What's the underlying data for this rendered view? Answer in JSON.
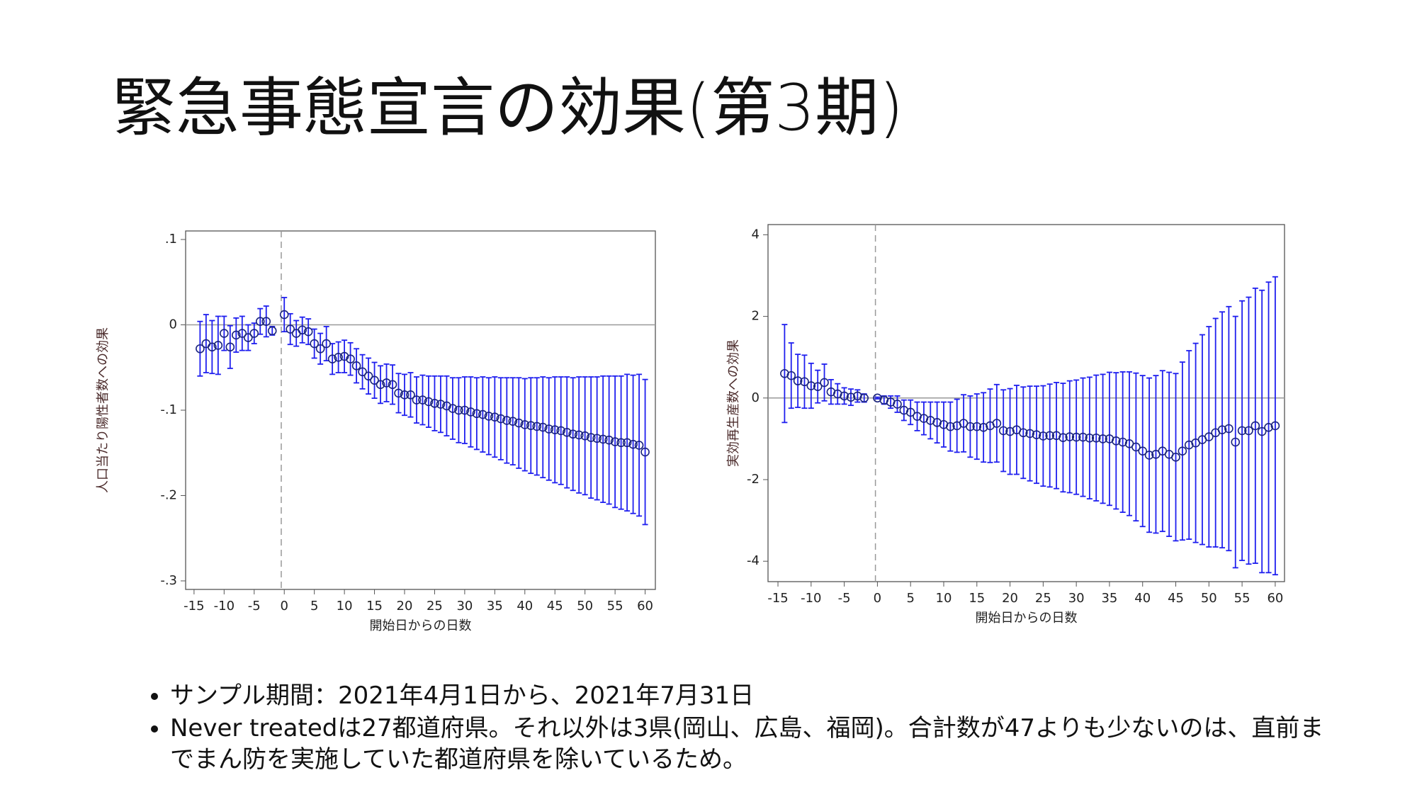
{
  "title": "緊急事態宣言の効果(第3期)",
  "bullets": [
    "サンプル期間：2021年4月1日から、2021年7月31日",
    "Never treatedは27都道府県。それ以外は3県(岡山、広島、福岡)。合計数が47よりも少ないのは、直前までまん防を実施していた都道府県を除いているため。"
  ],
  "chart_data": [
    {
      "type": "errorbar",
      "xlabel": "開始日からの日数",
      "ylabel": "人口当たり陽性者数への効果",
      "xlim": [
        -16.4,
        61.7
      ],
      "ylim": [
        -0.31,
        0.11
      ],
      "xticks": [
        -15,
        -10,
        -5,
        0,
        5,
        10,
        15,
        20,
        25,
        30,
        35,
        40,
        45,
        50,
        55,
        60
      ],
      "yticks": [
        {
          "value": 0.1,
          "label": ".1"
        },
        0,
        {
          "value": -0.1,
          "label": "-.1"
        },
        {
          "value": -0.2,
          "label": "-.2"
        },
        {
          "value": -0.3,
          "label": "-.3"
        }
      ],
      "hline": 0,
      "vline": -0.5,
      "color": "#1f1fef",
      "marker_color": "#1a237e",
      "x": [
        -14,
        -13,
        -12,
        -11,
        -10,
        -9,
        -8,
        -7,
        -6,
        -5,
        -4,
        -3,
        -2,
        0,
        1,
        2,
        3,
        4,
        5,
        6,
        7,
        8,
        9,
        10,
        11,
        12,
        13,
        14,
        15,
        16,
        17,
        18,
        19,
        20,
        21,
        22,
        23,
        24,
        25,
        26,
        27,
        28,
        29,
        30,
        31,
        32,
        33,
        34,
        35,
        36,
        37,
        38,
        39,
        40,
        41,
        42,
        43,
        44,
        45,
        46,
        47,
        48,
        49,
        50,
        51,
        52,
        53,
        54,
        55,
        56,
        57,
        58,
        59,
        60
      ],
      "values": [
        -0.028,
        -0.022,
        -0.026,
        -0.024,
        -0.01,
        -0.026,
        -0.012,
        -0.01,
        -0.015,
        -0.01,
        0.004,
        0.004,
        -0.007,
        0.012,
        -0.005,
        -0.01,
        -0.006,
        -0.008,
        -0.022,
        -0.028,
        -0.022,
        -0.04,
        -0.038,
        -0.037,
        -0.04,
        -0.048,
        -0.055,
        -0.06,
        -0.065,
        -0.07,
        -0.068,
        -0.07,
        -0.08,
        -0.082,
        -0.082,
        -0.088,
        -0.088,
        -0.09,
        -0.092,
        -0.093,
        -0.095,
        -0.098,
        -0.1,
        -0.1,
        -0.102,
        -0.104,
        -0.105,
        -0.107,
        -0.108,
        -0.11,
        -0.112,
        -0.113,
        -0.115,
        -0.117,
        -0.118,
        -0.119,
        -0.12,
        -0.122,
        -0.123,
        -0.124,
        -0.126,
        -0.128,
        -0.129,
        -0.13,
        -0.132,
        -0.133,
        -0.134,
        -0.135,
        -0.137,
        -0.138,
        -0.138,
        -0.14,
        -0.141,
        -0.149
      ],
      "errors": [
        0.032,
        0.034,
        0.031,
        0.034,
        0.02,
        0.025,
        0.02,
        0.02,
        0.015,
        0.012,
        0.015,
        0.018,
        0.005,
        0.02,
        0.018,
        0.015,
        0.015,
        0.015,
        0.017,
        0.018,
        0.02,
        0.018,
        0.018,
        0.019,
        0.019,
        0.02,
        0.02,
        0.021,
        0.021,
        0.022,
        0.022,
        0.023,
        0.023,
        0.024,
        0.026,
        0.027,
        0.029,
        0.03,
        0.032,
        0.033,
        0.035,
        0.036,
        0.038,
        0.039,
        0.041,
        0.042,
        0.044,
        0.045,
        0.047,
        0.048,
        0.05,
        0.051,
        0.053,
        0.054,
        0.056,
        0.057,
        0.059,
        0.06,
        0.062,
        0.063,
        0.065,
        0.066,
        0.068,
        0.069,
        0.071,
        0.072,
        0.074,
        0.075,
        0.077,
        0.078,
        0.08,
        0.081,
        0.083,
        0.085
      ]
    },
    {
      "type": "errorbar",
      "xlabel": "開始日からの日数",
      "ylabel": "実効再生産数への効果",
      "xlim": [
        -16.5,
        61.4
      ],
      "ylim": [
        -4.5,
        4.25
      ],
      "xticks": [
        -15,
        -10,
        -5,
        0,
        5,
        10,
        15,
        20,
        25,
        30,
        35,
        40,
        45,
        50,
        55,
        60
      ],
      "yticks": [
        4,
        2,
        0,
        -2,
        -4
      ],
      "hline": 0,
      "vline": -0.3,
      "color": "#1f1fef",
      "marker_color": "#1a237e",
      "x": [
        -14,
        -13,
        -12,
        -11,
        -10,
        -9,
        -8,
        -7,
        -6,
        -5,
        -4,
        -3,
        -2,
        0,
        1,
        2,
        3,
        4,
        5,
        6,
        7,
        8,
        9,
        10,
        11,
        12,
        13,
        14,
        15,
        16,
        17,
        18,
        19,
        20,
        21,
        22,
        23,
        24,
        25,
        26,
        27,
        28,
        29,
        30,
        31,
        32,
        33,
        34,
        35,
        36,
        37,
        38,
        39,
        40,
        41,
        42,
        43,
        44,
        45,
        46,
        47,
        48,
        49,
        50,
        51,
        52,
        53,
        54,
        55,
        56,
        57,
        58,
        59,
        60
      ],
      "values": [
        0.6,
        0.55,
        0.42,
        0.4,
        0.3,
        0.28,
        0.38,
        0.15,
        0.1,
        0.05,
        0.02,
        0.05,
        0,
        0,
        -0.05,
        -0.1,
        -0.15,
        -0.3,
        -0.35,
        -0.45,
        -0.5,
        -0.55,
        -0.6,
        -0.65,
        -0.7,
        -0.68,
        -0.62,
        -0.7,
        -0.7,
        -0.72,
        -0.68,
        -0.62,
        -0.8,
        -0.82,
        -0.78,
        -0.85,
        -0.87,
        -0.9,
        -0.93,
        -0.92,
        -0.92,
        -0.97,
        -0.95,
        -0.96,
        -0.96,
        -0.98,
        -0.98,
        -1.0,
        -1.0,
        -1.05,
        -1.08,
        -1.12,
        -1.2,
        -1.3,
        -1.4,
        -1.38,
        -1.3,
        -1.38,
        -1.45,
        -1.3,
        -1.15,
        -1.1,
        -1.02,
        -0.95,
        -0.85,
        -0.78,
        -0.75,
        -1.08,
        -0.8,
        -0.8,
        -0.68,
        -0.82,
        -0.72,
        -0.68
      ],
      "errors": [
        1.2,
        0.8,
        0.65,
        0.65,
        0.55,
        0.4,
        0.45,
        0.3,
        0.25,
        0.2,
        0.2,
        0.15,
        0.1,
        0.02,
        0.1,
        0.15,
        0.2,
        0.25,
        0.3,
        0.35,
        0.4,
        0.45,
        0.5,
        0.55,
        0.6,
        0.65,
        0.7,
        0.75,
        0.8,
        0.85,
        0.9,
        0.95,
        1.0,
        1.05,
        1.09,
        1.12,
        1.16,
        1.19,
        1.23,
        1.26,
        1.3,
        1.33,
        1.37,
        1.4,
        1.45,
        1.49,
        1.54,
        1.58,
        1.63,
        1.67,
        1.72,
        1.76,
        1.81,
        1.85,
        1.89,
        1.93,
        1.97,
        2.01,
        2.05,
        2.18,
        2.31,
        2.44,
        2.57,
        2.7,
        2.8,
        2.89,
        2.99,
        3.08,
        3.18,
        3.27,
        3.37,
        3.46,
        3.56,
        3.65
      ]
    }
  ]
}
